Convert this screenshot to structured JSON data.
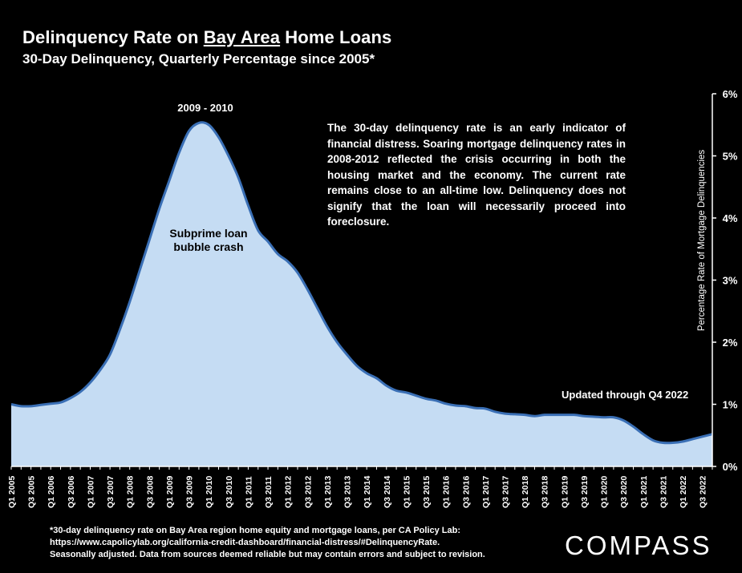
{
  "header": {
    "title_prefix": "Delinquency Rate on ",
    "title_underlined": "Bay Area",
    "title_suffix": " Home Loans",
    "subtitle": "30-Day Delinquency, Quarterly Percentage since 2005*"
  },
  "annotations": {
    "peak": "2009 - 2010",
    "crash": "Subprime loan bubble crash",
    "updated": "Updated through Q4 2022",
    "description": "The 30-day delinquency rate is an early indicator of financial distress. Soaring mortgage delinquency rates in 2008-2012 reflected the crisis occurring in both the housing market and the economy. The current rate remains close to an all-time low. Delinquency does not signify that the loan will necessarily proceed into foreclosure."
  },
  "footnote": {
    "line1": "*30-day delinquency rate on Bay Area region home equity and mortgage loans, per CA Policy Lab:",
    "line2": "https://www.capolicylab.org/california-credit-dashboard/financial-distress/#DelinquencyRate.",
    "line3": "Seasonally adjusted. Data from sources deemed reliable but may contain errors and subject to revision."
  },
  "logo": "COMPASS",
  "colors": {
    "fill": "#c5dcf3",
    "line": "#3a6fb5",
    "background": "#000000"
  },
  "chart_data": {
    "type": "area",
    "title": "Delinquency Rate on Bay Area Home Loans",
    "subtitle": "30-Day Delinquency, Quarterly Percentage since 2005*",
    "ylabel": "Percentage Rate of Mortgage Delinquencies",
    "xlabel": "",
    "ylim": [
      0,
      6
    ],
    "y_ticks": [
      "0%",
      "1%",
      "2%",
      "3%",
      "4%",
      "5%",
      "6%"
    ],
    "y_axis_position": "right",
    "grid": false,
    "x": [
      "Q1 2005",
      "Q2 2005",
      "Q3 2005",
      "Q4 2005",
      "Q1 2006",
      "Q2 2006",
      "Q3 2006",
      "Q4 2006",
      "Q1 2007",
      "Q2 2007",
      "Q3 2007",
      "Q4 2007",
      "Q1 2008",
      "Q2 2008",
      "Q3 2008",
      "Q4 2008",
      "Q1 2009",
      "Q2 2009",
      "Q3 2009",
      "Q4 2009",
      "Q1 2010",
      "Q2 2010",
      "Q3 2010",
      "Q4 2010",
      "Q1 2011",
      "Q2 2011",
      "Q3 2011",
      "Q4 2011",
      "Q1 2012",
      "Q2 2012",
      "Q3 2012",
      "Q4 2012",
      "Q1 2013",
      "Q2 2013",
      "Q3 2013",
      "Q4 2013",
      "Q1 2014",
      "Q2 2014",
      "Q3 2014",
      "Q4 2014",
      "Q1 2015",
      "Q2 2015",
      "Q3 2015",
      "Q4 2015",
      "Q1 2016",
      "Q2 2016",
      "Q3 2016",
      "Q4 2016",
      "Q1 2017",
      "Q2 2017",
      "Q3 2017",
      "Q4 2017",
      "Q1 2018",
      "Q2 2018",
      "Q3 2018",
      "Q4 2018",
      "Q1 2019",
      "Q2 2019",
      "Q3 2019",
      "Q4 2019",
      "Q1 2020",
      "Q2 2020",
      "Q3 2020",
      "Q4 2020",
      "Q1 2021",
      "Q2 2021",
      "Q3 2021",
      "Q4 2021",
      "Q1 2022",
      "Q2 2022",
      "Q3 2022",
      "Q4 2022"
    ],
    "x_tick_labels": [
      "Q1 2005",
      "Q3 2005",
      "Q1 2006",
      "Q3 2006",
      "Q1 2007",
      "Q3 2007",
      "Q1 2008",
      "Q3 2008",
      "Q1 2009",
      "Q3 2009",
      "Q1 2010",
      "Q3 2010",
      "Q1 2011",
      "Q3 2011",
      "Q1 2012",
      "Q3 2012",
      "Q1 2013",
      "Q3 2013",
      "Q1 2014",
      "Q3 2014",
      "Q1 2015",
      "Q3 2015",
      "Q1 2016",
      "Q3 2016",
      "Q1 2017",
      "Q3 2017",
      "Q1 2018",
      "Q3 2018",
      "Q1 2019",
      "Q3 2019",
      "Q1 2020",
      "Q3 2020",
      "Q1 2021",
      "Q3 2021",
      "Q1 2022",
      "Q3 2022"
    ],
    "series": [
      {
        "values": [
          1.0,
          0.97,
          0.97,
          0.99,
          1.01,
          1.03,
          1.1,
          1.2,
          1.35,
          1.55,
          1.8,
          2.2,
          2.65,
          3.15,
          3.65,
          4.15,
          4.6,
          5.05,
          5.4,
          5.53,
          5.5,
          5.3,
          5.0,
          4.65,
          4.2,
          3.8,
          3.62,
          3.42,
          3.3,
          3.12,
          2.85,
          2.55,
          2.25,
          2.0,
          1.8,
          1.62,
          1.5,
          1.42,
          1.3,
          1.22,
          1.19,
          1.14,
          1.09,
          1.06,
          1.01,
          0.98,
          0.97,
          0.94,
          0.93,
          0.88,
          0.85,
          0.84,
          0.83,
          0.81,
          0.83,
          0.83,
          0.83,
          0.83,
          0.81,
          0.8,
          0.79,
          0.79,
          0.74,
          0.64,
          0.52,
          0.42,
          0.38,
          0.38,
          0.4,
          0.44,
          0.48,
          0.52
        ]
      }
    ]
  }
}
